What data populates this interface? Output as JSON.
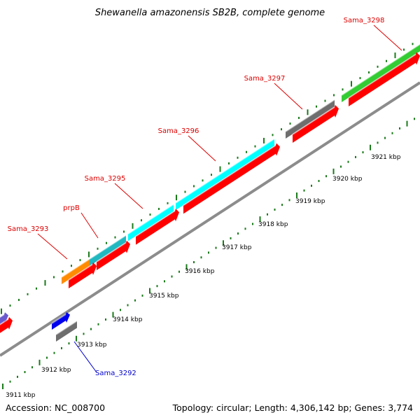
{
  "title": "Shewanella amazonensis SB2B, complete genome",
  "footer": {
    "accession": "Accession: NC_008700",
    "summary": "Topology: circular; Length: 4,306,142 bp; Genes: 3,774"
  },
  "colors": {
    "backbone": "#8c8c8c",
    "tick_green": "#1a7a1a",
    "label_red": "#dd0000",
    "label_blue": "#0000cc",
    "cds_forward": "#ff0000",
    "gray_feature": "#6e6e6e",
    "orange_feature": "#ff8c00",
    "teal_feature": "#20b8c0",
    "cyan_feature": "#00ffff",
    "green_feature": "#33cc33",
    "blue_feature": "#0000ee",
    "purple_feature": "#6a5acd"
  },
  "ruler_labels": [
    "3911 kbp",
    "3912 kbp",
    "3913 kbp",
    "3914 kbp",
    "3915 kbp",
    "3916 kbp",
    "3917 kbp",
    "3918 kbp",
    "3919 kbp",
    "3920 kbp",
    "3921 kbp"
  ],
  "gene_labels": [
    {
      "text": "Sama_3292",
      "color": "#0000cc"
    },
    {
      "text": "Sama_3293",
      "color": "#dd0000"
    },
    {
      "text": "prpB",
      "color": "#dd0000"
    },
    {
      "text": "Sama_3295",
      "color": "#dd0000"
    },
    {
      "text": "Sama_3296",
      "color": "#dd0000"
    },
    {
      "text": "Sama_3297",
      "color": "#dd0000"
    },
    {
      "text": "Sama_3298",
      "color": "#dd0000"
    }
  ]
}
